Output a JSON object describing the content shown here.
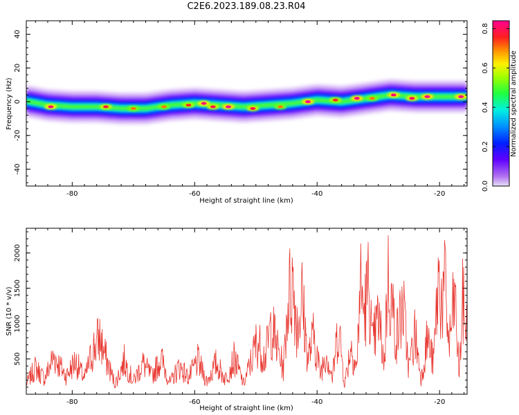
{
  "title": "C2E6.2023.189.08.23.R04",
  "chart_data": [
    {
      "type": "heatmap",
      "xlabel": "Height of straight line (km)",
      "ylabel": "Frequency (Hz)",
      "xlim": [
        -87.5,
        -15.5
      ],
      "ylim": [
        -50,
        48
      ],
      "xticks": [
        -80,
        -60,
        -40,
        -20
      ],
      "yticks": [
        40,
        20,
        0,
        -20,
        -40
      ],
      "colorbar": {
        "label": "Normalized spectral amplitude",
        "range": [
          0,
          0.84
        ],
        "ticks": [
          0.0,
          0.2,
          0.4,
          0.6,
          0.8
        ],
        "colormap": "rainbow (purple-blue-cyan-green-yellow-red-magenta)"
      },
      "band_center_hz": {
        "x": [
          -87,
          -84,
          -80,
          -76,
          -72,
          -68,
          -64,
          -60,
          -56,
          -52,
          -48,
          -44,
          -40,
          -36,
          -32,
          -28,
          -24,
          -20,
          -16
        ],
        "y": [
          0,
          -2,
          -3,
          -3,
          -4,
          -4,
          -2,
          -1,
          -2,
          -3,
          -2,
          -1,
          1,
          0,
          2,
          4,
          3,
          3,
          3
        ]
      },
      "peaks": [
        {
          "x": -83.5,
          "y": -3,
          "amplitude": 0.82
        },
        {
          "x": -74.5,
          "y": -3,
          "amplitude": 0.78
        },
        {
          "x": -70,
          "y": -4,
          "amplitude": 0.7
        },
        {
          "x": -65,
          "y": -3,
          "amplitude": 0.7
        },
        {
          "x": -61,
          "y": -2,
          "amplitude": 0.75
        },
        {
          "x": -58.5,
          "y": -1,
          "amplitude": 0.82
        },
        {
          "x": -57,
          "y": -3,
          "amplitude": 0.78
        },
        {
          "x": -54.5,
          "y": -3,
          "amplitude": 0.84
        },
        {
          "x": -50.5,
          "y": -4,
          "amplitude": 0.78
        },
        {
          "x": -46,
          "y": -3,
          "amplitude": 0.7
        },
        {
          "x": -41.5,
          "y": 0,
          "amplitude": 0.84
        },
        {
          "x": -37,
          "y": 1,
          "amplitude": 0.75
        },
        {
          "x": -33.5,
          "y": 2,
          "amplitude": 0.84
        },
        {
          "x": -31,
          "y": 2,
          "amplitude": 0.7
        },
        {
          "x": -27.5,
          "y": 4,
          "amplitude": 0.82
        },
        {
          "x": -24.5,
          "y": 2,
          "amplitude": 0.8
        },
        {
          "x": -22,
          "y": 3,
          "amplitude": 0.84
        },
        {
          "x": -16.5,
          "y": 3,
          "amplitude": 0.84
        }
      ]
    },
    {
      "type": "line",
      "xlabel": "Height of straight line (km)",
      "ylabel": "SNR (10 * v/v)",
      "xlim": [
        -87.5,
        -15.5
      ],
      "ylim": [
        0,
        2350
      ],
      "xticks": [
        -80,
        -60,
        -40,
        -20
      ],
      "yticks": [
        500,
        1000,
        1500,
        2000
      ],
      "color": "#e8352e",
      "series": [
        {
          "x": [
            -87.5,
            -86,
            -84.5,
            -83,
            -81,
            -79.5,
            -78,
            -76.5,
            -75.5,
            -74.5,
            -73,
            -71.5,
            -70,
            -68.5,
            -67,
            -65.5,
            -64,
            -62.5,
            -61,
            -59.5,
            -58,
            -56.5,
            -55,
            -53.5,
            -52,
            -50.5,
            -49.8,
            -48.5,
            -47.5,
            -46.5,
            -45.5,
            -44.8,
            -44,
            -43.2,
            -42.5,
            -41.5,
            -40.5,
            -39.5,
            -38.5,
            -37.5,
            -36.5,
            -35.5,
            -34.5,
            -33.5,
            -33,
            -32.3,
            -31.5,
            -31,
            -30,
            -29,
            -28.5,
            -28,
            -27,
            -26,
            -25,
            -24,
            -23,
            -22,
            -21,
            -20.2,
            -19.5,
            -19,
            -18.5,
            -17.5,
            -16.8,
            -16.2,
            -15.5
          ],
          "y": [
            200,
            520,
            300,
            750,
            350,
            650,
            300,
            900,
            1100,
            700,
            200,
            650,
            250,
            600,
            350,
            700,
            220,
            550,
            320,
            650,
            250,
            600,
            300,
            700,
            200,
            750,
            1050,
            700,
            1350,
            900,
            500,
            1800,
            2220,
            1300,
            1900,
            700,
            1150,
            400,
            850,
            300,
            1350,
            200,
            950,
            500,
            2180,
            1600,
            2200,
            900,
            1500,
            600,
            2300,
            1900,
            1100,
            1750,
            500,
            1200,
            300,
            1100,
            600,
            2220,
            1800,
            2100,
            900,
            1900,
            400,
            1800,
            1200
          ]
        }
      ]
    }
  ]
}
